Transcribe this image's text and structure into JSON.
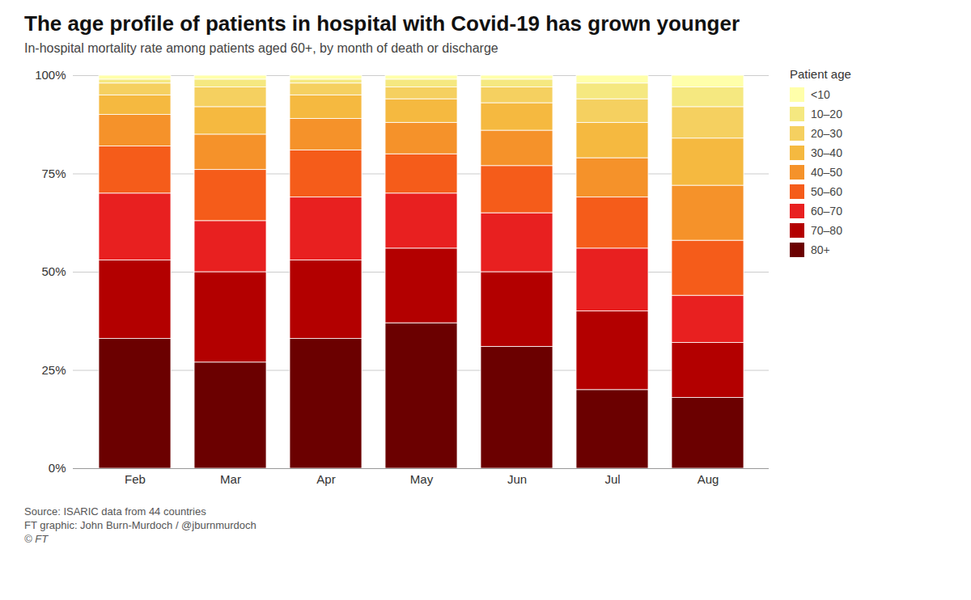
{
  "chart_data": {
    "type": "bar",
    "stacked": true,
    "title": "The age profile of patients in hospital with Covid-19 has grown younger",
    "subtitle": "In-hospital mortality rate among patients aged 60+, by month of death or discharge",
    "legend_title": "Patient age",
    "source_lines": [
      "Source: ISARIC data from 44 countries",
      "FT graphic: John Burn-Murdoch / @jburnmurdoch",
      "© FT"
    ],
    "categories": [
      "Feb",
      "Mar",
      "Apr",
      "May",
      "Jun",
      "Jul",
      "Aug"
    ],
    "series": [
      {
        "name": "80+",
        "color": "#6b0000",
        "values": [
          33,
          27,
          33,
          37,
          31,
          20,
          18
        ]
      },
      {
        "name": "70–80",
        "color": "#b30000",
        "values": [
          20,
          23,
          20,
          19,
          19,
          20,
          14
        ]
      },
      {
        "name": "60–70",
        "color": "#e82020",
        "values": [
          17,
          13,
          16,
          14,
          15,
          16,
          12
        ]
      },
      {
        "name": "50–60",
        "color": "#f55c1a",
        "values": [
          12,
          13,
          12,
          10,
          12,
          13,
          14
        ]
      },
      {
        "name": "40–50",
        "color": "#f5922a",
        "values": [
          8,
          9,
          8,
          8,
          9,
          10,
          14
        ]
      },
      {
        "name": "30–40",
        "color": "#f5b940",
        "values": [
          5,
          7,
          6,
          6,
          7,
          9,
          12
        ]
      },
      {
        "name": "20–30",
        "color": "#f5d060",
        "values": [
          3,
          5,
          3,
          3,
          4,
          6,
          8
        ]
      },
      {
        "name": "10–20",
        "color": "#f5e880",
        "values": [
          1,
          2,
          1,
          2,
          2,
          4,
          5
        ]
      },
      {
        "name": "<10",
        "color": "#ffffaa",
        "values": [
          1,
          1,
          1,
          1,
          1,
          2,
          3
        ]
      }
    ],
    "ylim": [
      0,
      100
    ],
    "yticks": [
      {
        "value": 0,
        "label": "0%"
      },
      {
        "value": 25,
        "label": "25%"
      },
      {
        "value": 50,
        "label": "50%"
      },
      {
        "value": 75,
        "label": "75%"
      },
      {
        "value": 100,
        "label": "100%"
      }
    ],
    "grid": true,
    "legend": "right"
  }
}
